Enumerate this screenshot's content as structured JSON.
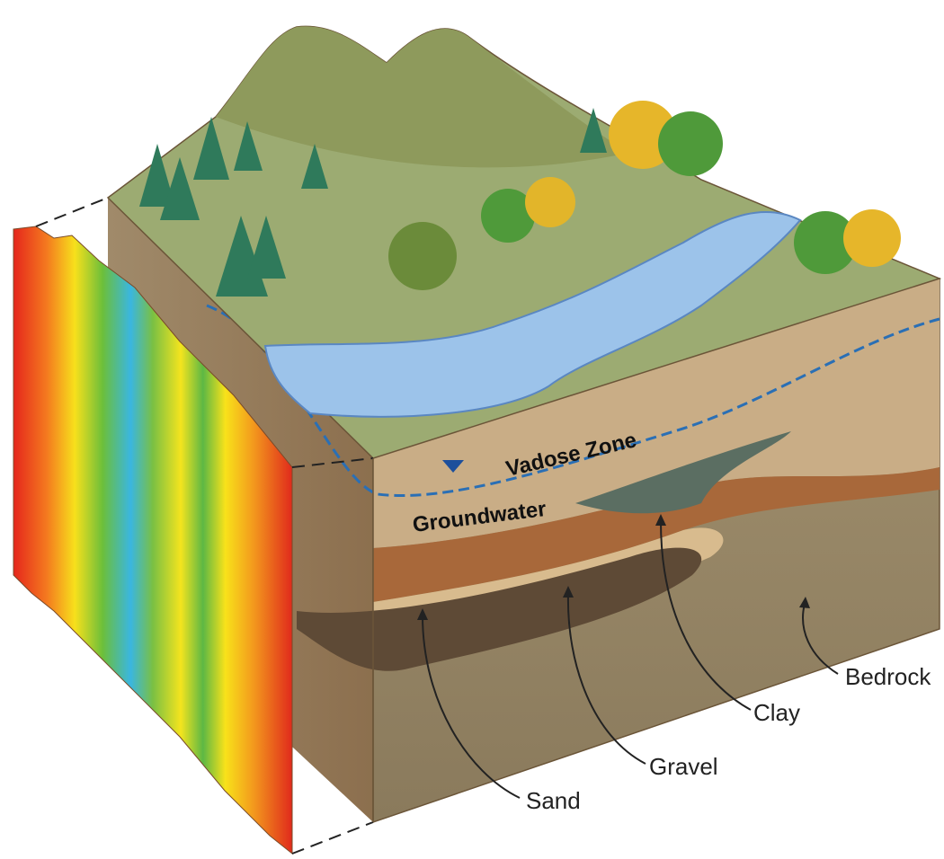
{
  "labels": [
    "Vadose Zone",
    "Groundwater",
    "Sand",
    "Gravel",
    "Clay",
    "Bedrock"
  ]
}
